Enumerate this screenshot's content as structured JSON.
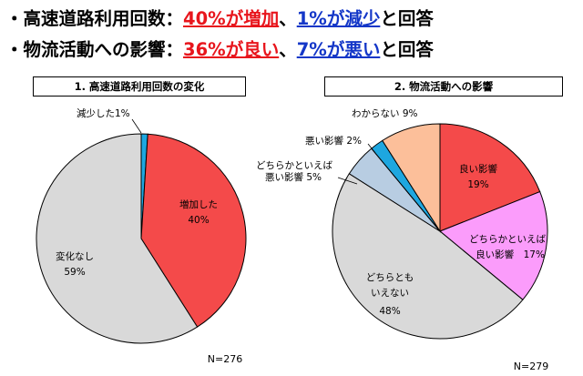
{
  "headlines": [
    {
      "prefix": "・高速道路利用回数：",
      "seg1": "40%が増加",
      "sep": "、",
      "seg2": "1%が減少",
      "suffix": "と回答"
    },
    {
      "prefix": "・物流活動への影響：",
      "seg1": "36%が良い",
      "sep": "、",
      "seg2": "7%が悪い",
      "suffix": "と回答"
    }
  ],
  "colors": {
    "red": "#e8151c",
    "blue": "#1437c8"
  },
  "chart_data": [
    {
      "type": "pie",
      "title": "1. 高速道路利用回数の変化",
      "note": "N=276",
      "slices": [
        {
          "label": "減少した",
          "value": 1,
          "value_text": "1%",
          "color": "#1ea7e0"
        },
        {
          "label": "増加した",
          "value": 40,
          "value_text": "40%",
          "color": "#f44a4a"
        },
        {
          "label": "変化なし",
          "value": 59,
          "value_text": "59%",
          "color": "#d9d9d9"
        }
      ]
    },
    {
      "type": "pie",
      "title": "2. 物流活動への影響",
      "note": "N=279",
      "slices": [
        {
          "label": "良い影響",
          "value": 19,
          "value_text": "19%",
          "color": "#f44a4a"
        },
        {
          "label": "どちらかといえば良い影響",
          "value": 17,
          "value_text": "17%",
          "color": "#fb9cfb"
        },
        {
          "label": "どちらともいえない",
          "value": 48,
          "value_text": "48%",
          "color": "#d9d9d9"
        },
        {
          "label": "どちらかといえば悪い影響",
          "value": 5,
          "value_text": "5%",
          "color": "#b8cde2"
        },
        {
          "label": "悪い影響",
          "value": 2,
          "value_text": "2%",
          "color": "#1ea7e0"
        },
        {
          "label": "わからない",
          "value": 9,
          "value_text": "9%",
          "color": "#fcbf9a"
        }
      ]
    }
  ]
}
